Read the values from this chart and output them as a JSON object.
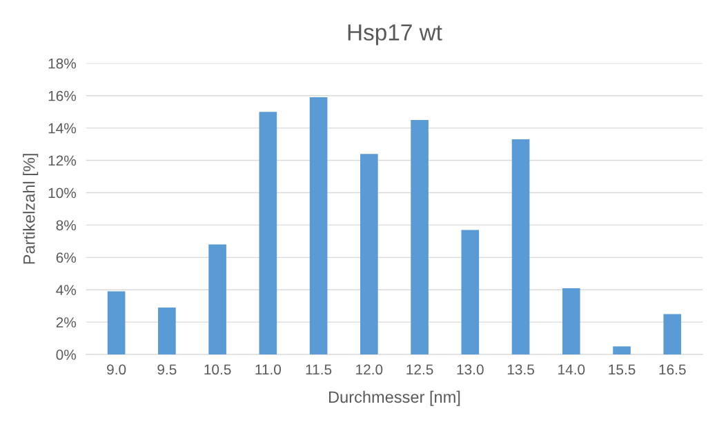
{
  "chart_data": {
    "type": "bar",
    "title": "Hsp17 wt",
    "xlabel": "Durchmesser [nm]",
    "ylabel": "Partikelzahl [%]",
    "categories": [
      "9.0",
      "9.5",
      "10.5",
      "11.0",
      "11.5",
      "12.0",
      "12.5",
      "13.0",
      "13.5",
      "14.0",
      "15.5",
      "16.5"
    ],
    "values": [
      3.9,
      2.9,
      6.8,
      15.0,
      15.9,
      12.4,
      14.5,
      7.7,
      13.3,
      4.1,
      0.5,
      2.5
    ],
    "color": "#5b9bd5",
    "ylim": [
      0,
      18
    ],
    "yticks": [
      {
        "value": 0,
        "label": "0%"
      },
      {
        "value": 2,
        "label": "2%"
      },
      {
        "value": 4,
        "label": "4%"
      },
      {
        "value": 6,
        "label": "6%"
      },
      {
        "value": 8,
        "label": "8%"
      },
      {
        "value": 10,
        "label": "10%"
      },
      {
        "value": 12,
        "label": "12%"
      },
      {
        "value": 14,
        "label": "14%"
      },
      {
        "value": 16,
        "label": "16%"
      },
      {
        "value": 18,
        "label": "18%"
      }
    ],
    "grid": "y",
    "legend": false
  }
}
